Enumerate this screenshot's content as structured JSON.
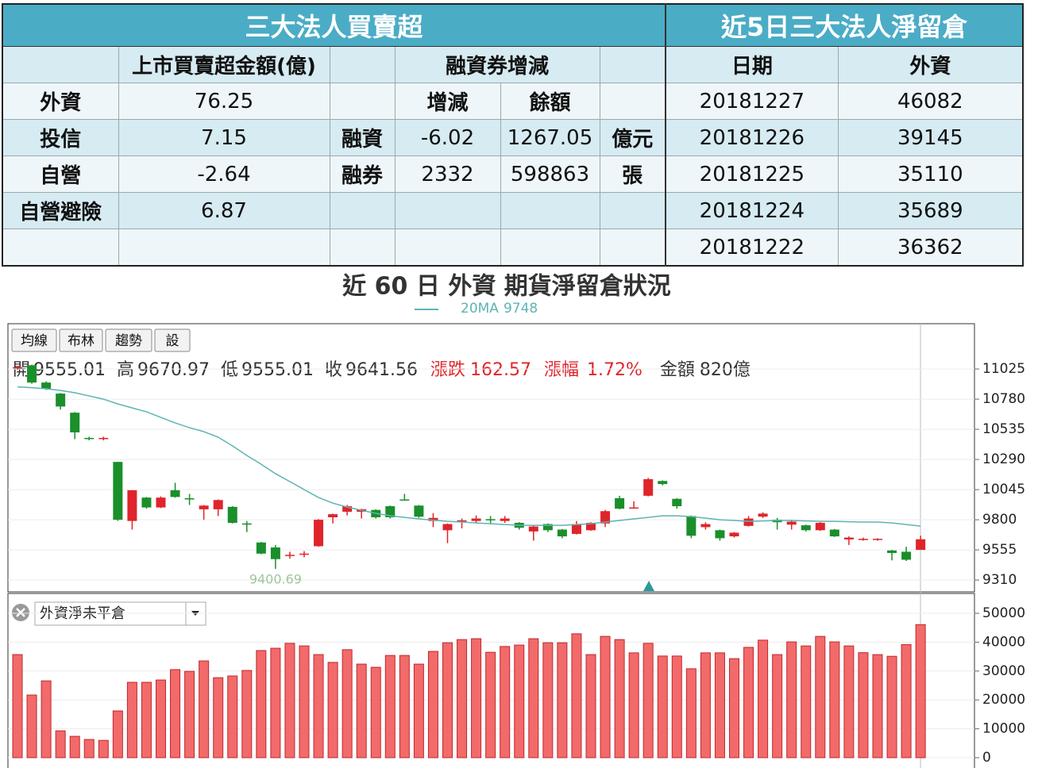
{
  "table": {
    "left_title": "三大法人買賣超",
    "right_title": "近5日三大法人淨留倉",
    "headers": [
      "上市買賣超金額(億)",
      "融資券增減",
      "日期",
      "外資"
    ],
    "sub_headers": [
      "增減",
      "餘額"
    ],
    "investors": [
      {
        "name": "外資",
        "amount": 76.25
      },
      {
        "name": "投信",
        "amount": 7.15
      },
      {
        "name": "自營",
        "amount": -2.64
      },
      {
        "name": "自營避險",
        "amount": 6.87
      }
    ],
    "margin": [
      {
        "name": "融資",
        "change": -6.02,
        "balance": 1267.05,
        "unit": "億元"
      },
      {
        "name": "融券",
        "change": 2332,
        "balance": 598863,
        "unit": "張"
      }
    ],
    "positions": [
      {
        "date": "20181227",
        "foreign": 46082
      },
      {
        "date": "20181226",
        "foreign": 39145
      },
      {
        "date": "20181225",
        "foreign": 35110
      },
      {
        "date": "20181224",
        "foreign": 35689
      },
      {
        "date": "20181222",
        "foreign": 36362
      }
    ]
  },
  "chart_data": [
    {
      "type": "candlestick",
      "title": "近 60 日 外資 期貨淨留倉狀況",
      "buttons": [
        "均線",
        "布林",
        "趨勢",
        "設"
      ],
      "info": {
        "open_label": "開",
        "high_label": "高",
        "low_label": "低",
        "close_label": "收",
        "change_label": "漲跌",
        "change": 162.57,
        "change_pct_label": "漲幅",
        "change_pct": "1.72%",
        "amount_label": "金額",
        "amount": "820億"
      },
      "up_color": "#e0242b",
      "down_color": "#1a8f2a",
      "open": [
        11030,
        11055,
        10915,
        10825,
        10670,
        10465,
        10460,
        10270,
        9790,
        9980,
        9900,
        10040,
        9975,
        9885,
        9885,
        9905,
        9770,
        9615,
        9575,
        9510,
        9520,
        9585,
        9820,
        9865,
        9865,
        9880,
        9910,
        9965,
        9915,
        9790,
        9715,
        9790,
        9790,
        9805,
        9790,
        9775,
        9705,
        9765,
        9720,
        9685,
        9715,
        9770,
        9975,
        9895,
        9995,
        10115,
        9970,
        9830,
        9740,
        9715,
        9665,
        9750,
        9825,
        9800,
        9760,
        9755,
        9715,
        9720,
        9640,
        9640,
        9640,
        9550,
        9540,
        9555.01
      ],
      "high": [
        11050,
        11060,
        10925,
        10830,
        10675,
        10475,
        10475,
        10270,
        10040,
        9985,
        9990,
        10100,
        10010,
        9920,
        9965,
        9910,
        9790,
        9620,
        9595,
        9540,
        9545,
        9805,
        9850,
        9920,
        9890,
        9885,
        9915,
        10010,
        9920,
        9855,
        9770,
        9810,
        9835,
        9830,
        9830,
        9780,
        9750,
        9770,
        9725,
        9790,
        9780,
        9880,
        9995,
        9950,
        10140,
        10120,
        9975,
        9835,
        9780,
        9720,
        9700,
        9830,
        9860,
        9815,
        9800,
        9760,
        9780,
        9725,
        9665,
        9655,
        9650,
        9555,
        9580,
        9670.97
      ],
      "low": [
        11020,
        10905,
        10855,
        10695,
        10455,
        10445,
        10445,
        9790,
        9720,
        9890,
        9895,
        9980,
        9920,
        9800,
        9830,
        9770,
        9700,
        9520,
        9400.69,
        9485,
        9495,
        9580,
        9770,
        9835,
        9810,
        9810,
        9810,
        9955,
        9815,
        9740,
        9610,
        9730,
        9775,
        9770,
        9775,
        9720,
        9630,
        9700,
        9650,
        9680,
        9710,
        9740,
        9885,
        9890,
        9990,
        10080,
        9890,
        9650,
        9720,
        9630,
        9655,
        9745,
        9815,
        9720,
        9720,
        9705,
        9710,
        9660,
        9595,
        9630,
        9630,
        9470,
        9465,
        9555.01
      ],
      "close": [
        11040,
        10915,
        10865,
        10720,
        10510,
        10460,
        10465,
        9800,
        10040,
        9900,
        9980,
        9985,
        9965,
        9915,
        9960,
        9775,
        9765,
        9525,
        9480,
        9515,
        9525,
        9800,
        9845,
        9910,
        9885,
        9820,
        9820,
        9960,
        9825,
        9815,
        9765,
        9795,
        9810,
        9795,
        9810,
        9735,
        9745,
        9715,
        9665,
        9765,
        9775,
        9870,
        9890,
        9900,
        10130,
        10090,
        9910,
        9670,
        9765,
        9650,
        9695,
        9810,
        9850,
        9780,
        9785,
        9715,
        9775,
        9665,
        9655,
        9645,
        9645,
        9530,
        9475,
        9641.56
      ],
      "ma": {
        "name": "20MA",
        "color": "#5fb3b3",
        "values": [
          10880,
          10873,
          10864,
          10851,
          10832,
          10806,
          10780,
          10741,
          10709,
          10677,
          10632,
          10587,
          10548,
          10516,
          10471,
          10400,
          10322,
          10251,
          10174,
          10110,
          10045,
          9981,
          9935,
          9903,
          9877,
          9852,
          9832,
          9819,
          9807,
          9797,
          9787,
          9781,
          9774,
          9768,
          9761,
          9755,
          9755,
          9755,
          9755,
          9761,
          9768,
          9781,
          9794,
          9807,
          9819,
          9832,
          9832,
          9826,
          9813,
          9800,
          9794,
          9787,
          9790,
          9794,
          9794,
          9790,
          9787,
          9787,
          9784,
          9781,
          9781,
          9774,
          9761,
          9748
        ]
      },
      "ylim": [
        9214,
        11393
      ],
      "yticks": [
        9310,
        9555,
        9800,
        10045,
        10290,
        10535,
        10780,
        11025
      ],
      "grid": true
    },
    {
      "type": "bar",
      "series": [
        {
          "name": "外資淨未平倉",
          "color": "#f26a6a",
          "values": [
            35700,
            21700,
            26600,
            9300,
            7400,
            6300,
            6000,
            16200,
            26100,
            26100,
            26900,
            30500,
            29900,
            33500,
            27700,
            28300,
            30200,
            37100,
            37900,
            39600,
            38700,
            35700,
            33000,
            37400,
            32400,
            31300,
            35400,
            35400,
            32400,
            36800,
            39800,
            40900,
            41200,
            36500,
            38500,
            39000,
            41200,
            39800,
            39800,
            42900,
            35700,
            42000,
            40900,
            36300,
            39600,
            35200,
            35200,
            30800,
            36300,
            36300,
            34300,
            38200,
            40700,
            35700,
            40100,
            38700,
            42000,
            40100,
            38700,
            36362,
            35689,
            35110,
            39145,
            46082
          ]
        }
      ],
      "ylim": [
        -3571,
        56868
      ],
      "yticks": [
        0,
        10000,
        20000,
        30000,
        40000,
        50000
      ],
      "grid": true
    }
  ]
}
